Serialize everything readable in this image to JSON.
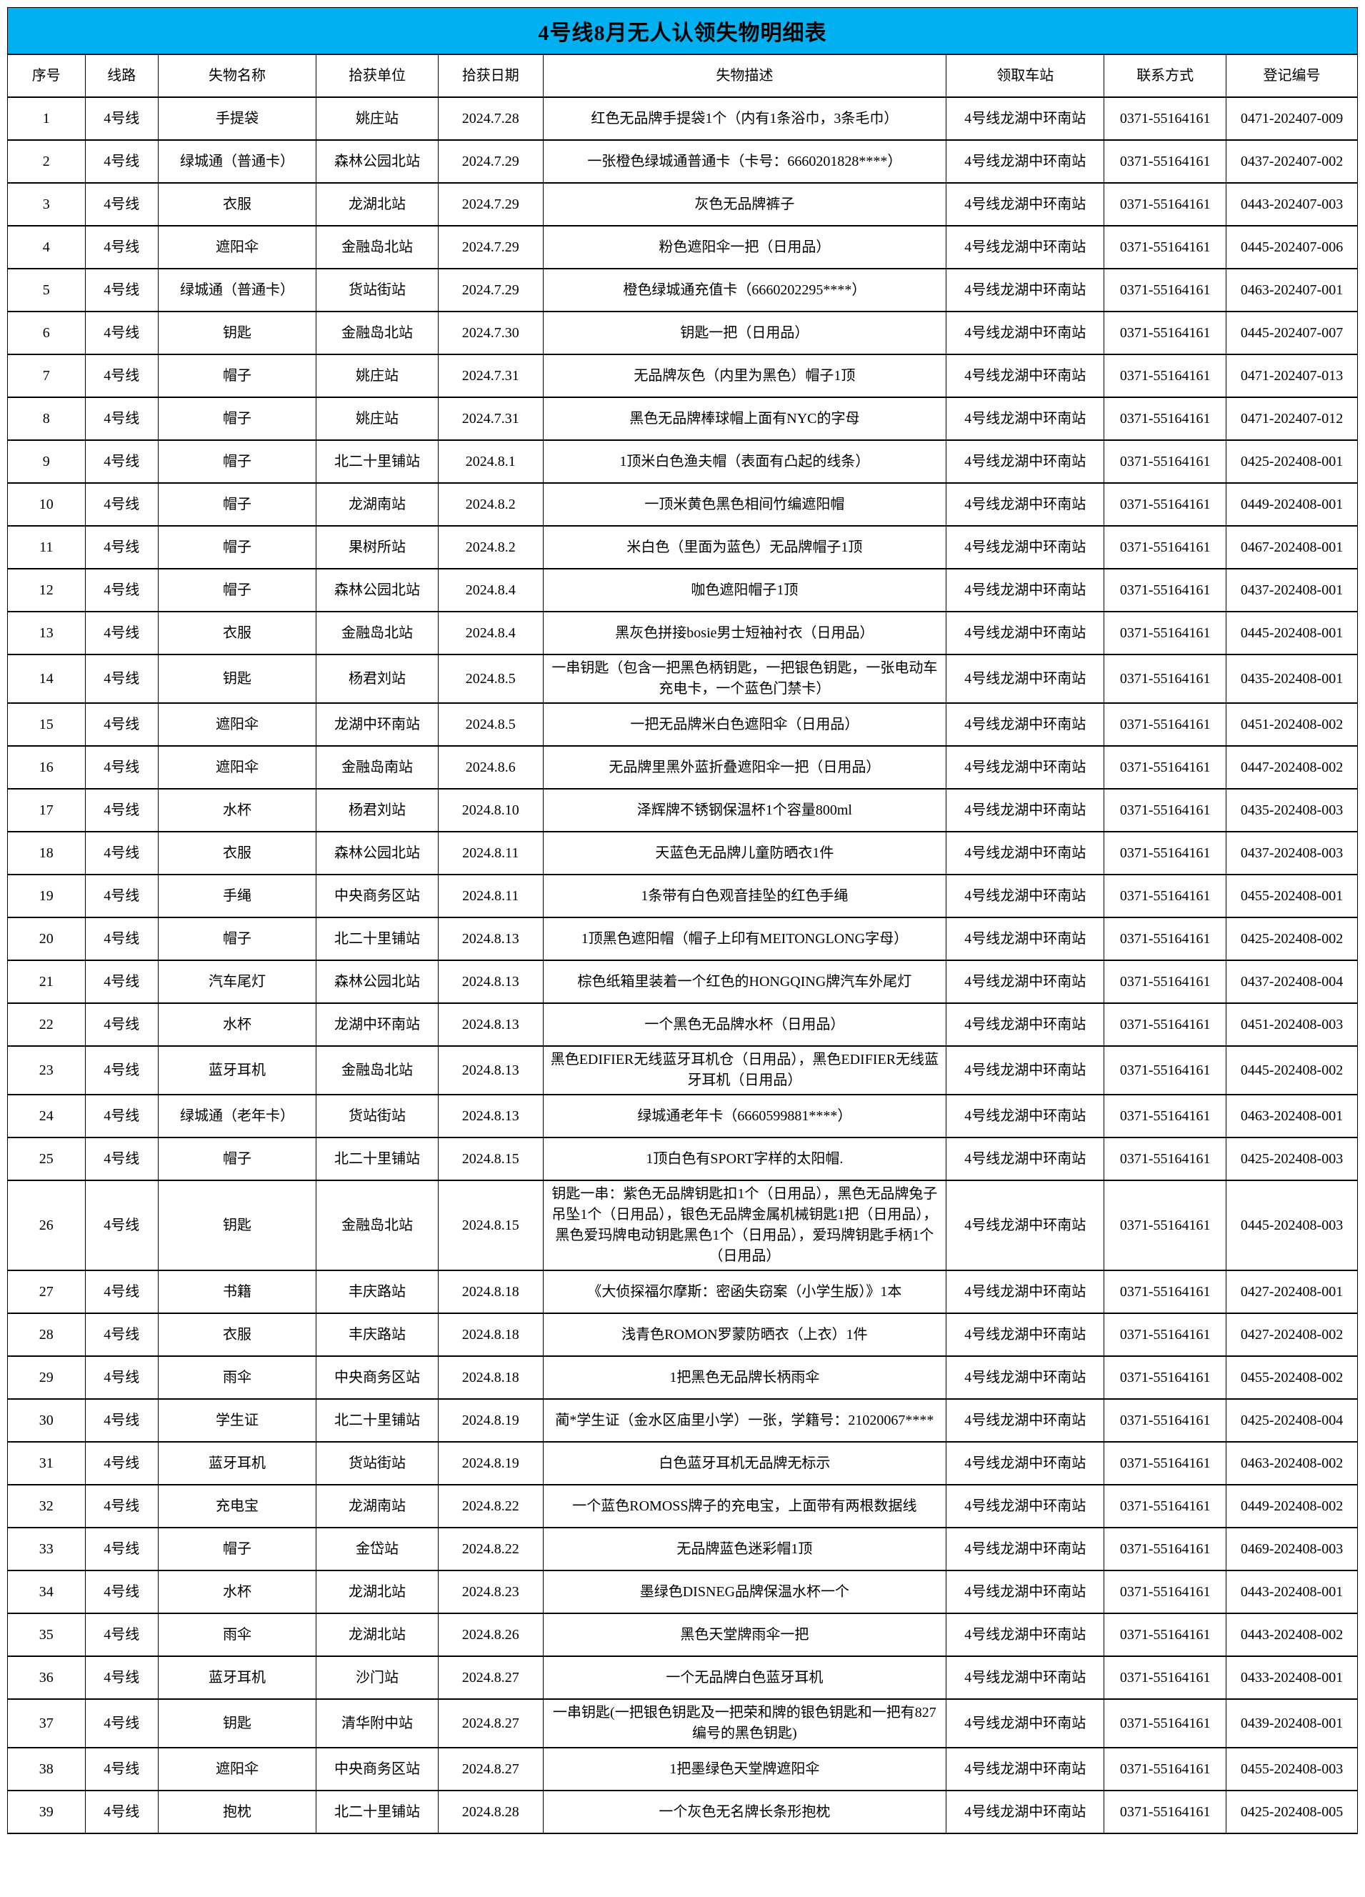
{
  "title": "4号线8月无人认领失物明细表",
  "theme": {
    "title_bg": "#00B0F0",
    "title_text": "#000000",
    "border_color": "#000000"
  },
  "table": {
    "columns": [
      {
        "key": "index",
        "label": "序号"
      },
      {
        "key": "line",
        "label": "线路"
      },
      {
        "key": "item_name",
        "label": "失物名称"
      },
      {
        "key": "found_station",
        "label": "拾获单位"
      },
      {
        "key": "found_date",
        "label": "拾获日期"
      },
      {
        "key": "description",
        "label": "失物描述"
      },
      {
        "key": "claim_station",
        "label": "领取车站"
      },
      {
        "key": "contact",
        "label": "联系方式"
      },
      {
        "key": "reg_number",
        "label": "登记编号"
      }
    ],
    "rows": [
      [
        "1",
        "4号线",
        "手提袋",
        "姚庄站",
        "2024.7.28",
        "红色无品牌手提袋1个（内有1条浴巾，3条毛巾）",
        "4号线龙湖中环南站",
        "0371-55164161",
        "0471-202407-009"
      ],
      [
        "2",
        "4号线",
        "绿城通（普通卡）",
        "森林公园北站",
        "2024.7.29",
        "一张橙色绿城通普通卡（卡号：6660201828****）",
        "4号线龙湖中环南站",
        "0371-55164161",
        "0437-202407-002"
      ],
      [
        "3",
        "4号线",
        "衣服",
        "龙湖北站",
        "2024.7.29",
        "灰色无品牌裤子",
        "4号线龙湖中环南站",
        "0371-55164161",
        "0443-202407-003"
      ],
      [
        "4",
        "4号线",
        "遮阳伞",
        "金融岛北站",
        "2024.7.29",
        "粉色遮阳伞一把（日用品）",
        "4号线龙湖中环南站",
        "0371-55164161",
        "0445-202407-006"
      ],
      [
        "5",
        "4号线",
        "绿城通（普通卡）",
        "货站街站",
        "2024.7.29",
        "橙色绿城通充值卡（6660202295****）",
        "4号线龙湖中环南站",
        "0371-55164161",
        "0463-202407-001"
      ],
      [
        "6",
        "4号线",
        "钥匙",
        "金融岛北站",
        "2024.7.30",
        "钥匙一把（日用品）",
        "4号线龙湖中环南站",
        "0371-55164161",
        "0445-202407-007"
      ],
      [
        "7",
        "4号线",
        "帽子",
        "姚庄站",
        "2024.7.31",
        "无品牌灰色（内里为黑色）帽子1顶",
        "4号线龙湖中环南站",
        "0371-55164161",
        "0471-202407-013"
      ],
      [
        "8",
        "4号线",
        "帽子",
        "姚庄站",
        "2024.7.31",
        "黑色无品牌棒球帽上面有NYC的字母",
        "4号线龙湖中环南站",
        "0371-55164161",
        "0471-202407-012"
      ],
      [
        "9",
        "4号线",
        "帽子",
        "北二十里铺站",
        "2024.8.1",
        "1顶米白色渔夫帽（表面有凸起的线条）",
        "4号线龙湖中环南站",
        "0371-55164161",
        "0425-202408-001"
      ],
      [
        "10",
        "4号线",
        "帽子",
        "龙湖南站",
        "2024.8.2",
        "一顶米黄色黑色相间竹编遮阳帽",
        "4号线龙湖中环南站",
        "0371-55164161",
        "0449-202408-001"
      ],
      [
        "11",
        "4号线",
        "帽子",
        "果树所站",
        "2024.8.2",
        "米白色（里面为蓝色）无品牌帽子1顶",
        "4号线龙湖中环南站",
        "0371-55164161",
        "0467-202408-001"
      ],
      [
        "12",
        "4号线",
        "帽子",
        "森林公园北站",
        "2024.8.4",
        "咖色遮阳帽子1顶",
        "4号线龙湖中环南站",
        "0371-55164161",
        "0437-202408-001"
      ],
      [
        "13",
        "4号线",
        "衣服",
        "金融岛北站",
        "2024.8.4",
        "黑灰色拼接bosie男士短袖衬衣（日用品）",
        "4号线龙湖中环南站",
        "0371-55164161",
        "0445-202408-001"
      ],
      [
        "14",
        "4号线",
        "钥匙",
        "杨君刘站",
        "2024.8.5",
        "一串钥匙（包含一把黑色柄钥匙，一把银色钥匙，一张电动车充电卡，一个蓝色门禁卡）",
        "4号线龙湖中环南站",
        "0371-55164161",
        "0435-202408-001"
      ],
      [
        "15",
        "4号线",
        "遮阳伞",
        "龙湖中环南站",
        "2024.8.5",
        "一把无品牌米白色遮阳伞（日用品）",
        "4号线龙湖中环南站",
        "0371-55164161",
        "0451-202408-002"
      ],
      [
        "16",
        "4号线",
        "遮阳伞",
        "金融岛南站",
        "2024.8.6",
        "无品牌里黑外蓝折叠遮阳伞一把（日用品）",
        "4号线龙湖中环南站",
        "0371-55164161",
        "0447-202408-002"
      ],
      [
        "17",
        "4号线",
        "水杯",
        "杨君刘站",
        "2024.8.10",
        "泽辉牌不锈钢保温杯1个容量800ml",
        "4号线龙湖中环南站",
        "0371-55164161",
        "0435-202408-003"
      ],
      [
        "18",
        "4号线",
        "衣服",
        "森林公园北站",
        "2024.8.11",
        "天蓝色无品牌儿童防晒衣1件",
        "4号线龙湖中环南站",
        "0371-55164161",
        "0437-202408-003"
      ],
      [
        "19",
        "4号线",
        "手绳",
        "中央商务区站",
        "2024.8.11",
        "1条带有白色观音挂坠的红色手绳",
        "4号线龙湖中环南站",
        "0371-55164161",
        "0455-202408-001"
      ],
      [
        "20",
        "4号线",
        "帽子",
        "北二十里铺站",
        "2024.8.13",
        "1顶黑色遮阳帽（帽子上印有MEITONGLONG字母）",
        "4号线龙湖中环南站",
        "0371-55164161",
        "0425-202408-002"
      ],
      [
        "21",
        "4号线",
        "汽车尾灯",
        "森林公园北站",
        "2024.8.13",
        "棕色纸箱里装着一个红色的HONGQING牌汽车外尾灯",
        "4号线龙湖中环南站",
        "0371-55164161",
        "0437-202408-004"
      ],
      [
        "22",
        "4号线",
        "水杯",
        "龙湖中环南站",
        "2024.8.13",
        "一个黑色无品牌水杯（日用品）",
        "4号线龙湖中环南站",
        "0371-55164161",
        "0451-202408-003"
      ],
      [
        "23",
        "4号线",
        "蓝牙耳机",
        "金融岛北站",
        "2024.8.13",
        "黑色EDIFIER无线蓝牙耳机仓（日用品），黑色EDIFIER无线蓝牙耳机（日用品）",
        "4号线龙湖中环南站",
        "0371-55164161",
        "0445-202408-002"
      ],
      [
        "24",
        "4号线",
        "绿城通（老年卡）",
        "货站街站",
        "2024.8.13",
        "绿城通老年卡（6660599881****）",
        "4号线龙湖中环南站",
        "0371-55164161",
        "0463-202408-001"
      ],
      [
        "25",
        "4号线",
        "帽子",
        "北二十里铺站",
        "2024.8.15",
        "1顶白色有SPORT字样的太阳帽.",
        "4号线龙湖中环南站",
        "0371-55164161",
        "0425-202408-003"
      ],
      [
        "26",
        "4号线",
        "钥匙",
        "金融岛北站",
        "2024.8.15",
        "钥匙一串：紫色无品牌钥匙扣1个（日用品），黑色无品牌兔子吊坠1个（日用品），银色无品牌金属机械钥匙1把（日用品），黑色爱玛牌电动钥匙黑色1个（日用品），爱玛牌钥匙手柄1个（日用品）",
        "4号线龙湖中环南站",
        "0371-55164161",
        "0445-202408-003"
      ],
      [
        "27",
        "4号线",
        "书籍",
        "丰庆路站",
        "2024.8.18",
        "《大侦探福尔摩斯：密函失窃案（小学生版）》1本",
        "4号线龙湖中环南站",
        "0371-55164161",
        "0427-202408-001"
      ],
      [
        "28",
        "4号线",
        "衣服",
        "丰庆路站",
        "2024.8.18",
        "浅青色ROMON罗蒙防晒衣（上衣）1件",
        "4号线龙湖中环南站",
        "0371-55164161",
        "0427-202408-002"
      ],
      [
        "29",
        "4号线",
        "雨伞",
        "中央商务区站",
        "2024.8.18",
        "1把黑色无品牌长柄雨伞",
        "4号线龙湖中环南站",
        "0371-55164161",
        "0455-202408-002"
      ],
      [
        "30",
        "4号线",
        "学生证",
        "北二十里铺站",
        "2024.8.19",
        "蔺*学生证（金水区庙里小学）一张，学籍号：21020067****",
        "4号线龙湖中环南站",
        "0371-55164161",
        "0425-202408-004"
      ],
      [
        "31",
        "4号线",
        "蓝牙耳机",
        "货站街站",
        "2024.8.19",
        "白色蓝牙耳机无品牌无标示",
        "4号线龙湖中环南站",
        "0371-55164161",
        "0463-202408-002"
      ],
      [
        "32",
        "4号线",
        "充电宝",
        "龙湖南站",
        "2024.8.22",
        "一个蓝色ROMOSS牌子的充电宝，上面带有两根数据线",
        "4号线龙湖中环南站",
        "0371-55164161",
        "0449-202408-002"
      ],
      [
        "33",
        "4号线",
        "帽子",
        "金岱站",
        "2024.8.22",
        "无品牌蓝色迷彩帽1顶",
        "4号线龙湖中环南站",
        "0371-55164161",
        "0469-202408-003"
      ],
      [
        "34",
        "4号线",
        "水杯",
        "龙湖北站",
        "2024.8.23",
        "墨绿色DISNEG品牌保温水杯一个",
        "4号线龙湖中环南站",
        "0371-55164161",
        "0443-202408-001"
      ],
      [
        "35",
        "4号线",
        "雨伞",
        "龙湖北站",
        "2024.8.26",
        "黑色天堂牌雨伞一把",
        "4号线龙湖中环南站",
        "0371-55164161",
        "0443-202408-002"
      ],
      [
        "36",
        "4号线",
        "蓝牙耳机",
        "沙门站",
        "2024.8.27",
        "一个无品牌白色蓝牙耳机",
        "4号线龙湖中环南站",
        "0371-55164161",
        "0433-202408-001"
      ],
      [
        "37",
        "4号线",
        "钥匙",
        "清华附中站",
        "2024.8.27",
        "一串钥匙(一把银色钥匙及一把荣和牌的银色钥匙和一把有827编号的黑色钥匙)",
        "4号线龙湖中环南站",
        "0371-55164161",
        "0439-202408-001"
      ],
      [
        "38",
        "4号线",
        "遮阳伞",
        "中央商务区站",
        "2024.8.27",
        "1把墨绿色天堂牌遮阳伞",
        "4号线龙湖中环南站",
        "0371-55164161",
        "0455-202408-003"
      ],
      [
        "39",
        "4号线",
        "抱枕",
        "北二十里铺站",
        "2024.8.28",
        "一个灰色无名牌长条形抱枕",
        "4号线龙湖中环南站",
        "0371-55164161",
        "0425-202408-005"
      ]
    ]
  }
}
